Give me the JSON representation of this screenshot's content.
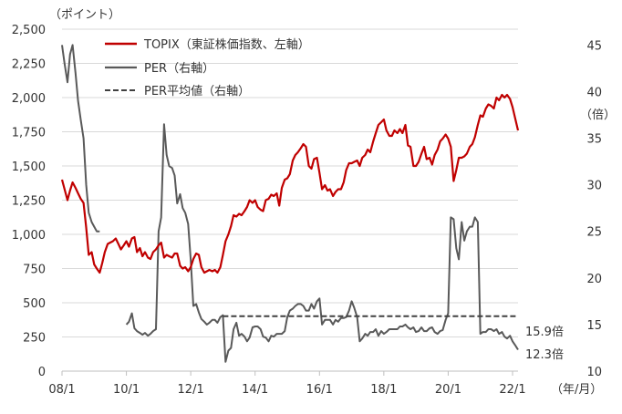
{
  "chart_data": {
    "type": "line",
    "left_unit": "（ポイント）",
    "right_unit": "（倍）",
    "x_unit": "（年/月）",
    "x_ticks": [
      "08/1",
      "10/1",
      "12/1",
      "14/1",
      "16/1",
      "18/1",
      "20/1",
      "22/1"
    ],
    "x_tick_years": [
      2008,
      2010,
      2012,
      2014,
      2016,
      2018,
      2020,
      2022
    ],
    "x_range": [
      2008.0,
      2022.17
    ],
    "left_axis": {
      "ticks": [
        "0",
        "250",
        "500",
        "750",
        "1,000",
        "1,250",
        "1,500",
        "1,750",
        "2,000",
        "2,250",
        "2,500"
      ],
      "values": [
        0,
        250,
        500,
        750,
        1000,
        1250,
        1500,
        1750,
        2000,
        2250,
        2500
      ],
      "range": [
        0,
        2500
      ]
    },
    "right_axis": {
      "ticks": [
        "10",
        "15",
        "20",
        "25",
        "30",
        "35",
        "40",
        "45"
      ],
      "values": [
        10,
        15,
        20,
        25,
        30,
        35,
        40,
        45
      ],
      "range": [
        10,
        46.7
      ]
    },
    "grid": true,
    "legend": {
      "placement": "top-left"
    },
    "series": [
      {
        "name": "TOPIX（東証株価指数、左軸）",
        "axis": "left",
        "color": "#c00000",
        "style": "solid",
        "x": [
          2008.0,
          2008.08,
          2008.17,
          2008.25,
          2008.33,
          2008.42,
          2008.5,
          2008.58,
          2008.67,
          2008.75,
          2008.83,
          2008.92,
          2009.0,
          2009.08,
          2009.17,
          2009.25,
          2009.33,
          2009.42,
          2009.5,
          2009.58,
          2009.67,
          2009.75,
          2009.83,
          2009.92,
          2010.0,
          2010.08,
          2010.17,
          2010.25,
          2010.33,
          2010.42,
          2010.5,
          2010.58,
          2010.67,
          2010.75,
          2010.83,
          2010.92,
          2011.0,
          2011.08,
          2011.17,
          2011.25,
          2011.33,
          2011.42,
          2011.5,
          2011.58,
          2011.67,
          2011.75,
          2011.83,
          2011.92,
          2012.0,
          2012.08,
          2012.17,
          2012.25,
          2012.33,
          2012.42,
          2012.5,
          2012.58,
          2012.67,
          2012.75,
          2012.83,
          2012.92,
          2013.0,
          2013.08,
          2013.17,
          2013.25,
          2013.33,
          2013.42,
          2013.5,
          2013.58,
          2013.67,
          2013.75,
          2013.83,
          2013.92,
          2014.0,
          2014.08,
          2014.17,
          2014.25,
          2014.33,
          2014.42,
          2014.5,
          2014.58,
          2014.67,
          2014.75,
          2014.83,
          2014.92,
          2015.0,
          2015.08,
          2015.17,
          2015.25,
          2015.33,
          2015.42,
          2015.5,
          2015.58,
          2015.67,
          2015.75,
          2015.83,
          2015.92,
          2016.0,
          2016.08,
          2016.17,
          2016.25,
          2016.33,
          2016.42,
          2016.5,
          2016.58,
          2016.67,
          2016.75,
          2016.83,
          2016.92,
          2017.0,
          2017.08,
          2017.17,
          2017.25,
          2017.33,
          2017.42,
          2017.5,
          2017.58,
          2017.67,
          2017.75,
          2017.83,
          2017.92,
          2018.0,
          2018.08,
          2018.17,
          2018.25,
          2018.33,
          2018.42,
          2018.5,
          2018.58,
          2018.67,
          2018.75,
          2018.83,
          2018.92,
          2019.0,
          2019.08,
          2019.17,
          2019.25,
          2019.33,
          2019.42,
          2019.5,
          2019.58,
          2019.67,
          2019.75,
          2019.83,
          2019.92,
          2020.0,
          2020.08,
          2020.17,
          2020.25,
          2020.33,
          2020.42,
          2020.5,
          2020.58,
          2020.67,
          2020.75,
          2020.83,
          2020.92,
          2021.0,
          2021.08,
          2021.17,
          2021.25,
          2021.33,
          2021.42,
          2021.5,
          2021.58,
          2021.67,
          2021.75,
          2021.83,
          2021.92,
          2022.0,
          2022.08,
          2022.17
        ],
        "values": [
          1400,
          1330,
          1250,
          1320,
          1380,
          1340,
          1300,
          1260,
          1230,
          1050,
          850,
          870,
          780,
          750,
          720,
          790,
          870,
          930,
          940,
          950,
          970,
          930,
          890,
          920,
          950,
          910,
          970,
          980,
          870,
          900,
          840,
          870,
          830,
          820,
          870,
          890,
          920,
          940,
          830,
          850,
          840,
          830,
          860,
          860,
          770,
          750,
          760,
          730,
          760,
          820,
          860,
          850,
          760,
          720,
          730,
          740,
          730,
          740,
          720,
          760,
          850,
          950,
          1000,
          1060,
          1140,
          1130,
          1150,
          1140,
          1170,
          1200,
          1250,
          1230,
          1250,
          1200,
          1180,
          1170,
          1250,
          1260,
          1290,
          1280,
          1300,
          1210,
          1340,
          1400,
          1410,
          1440,
          1540,
          1580,
          1600,
          1630,
          1660,
          1640,
          1500,
          1480,
          1550,
          1560,
          1450,
          1330,
          1360,
          1320,
          1330,
          1280,
          1310,
          1330,
          1330,
          1380,
          1470,
          1520,
          1520,
          1530,
          1540,
          1500,
          1560,
          1580,
          1620,
          1600,
          1680,
          1740,
          1800,
          1820,
          1840,
          1760,
          1720,
          1720,
          1760,
          1740,
          1770,
          1740,
          1800,
          1650,
          1640,
          1500,
          1500,
          1530,
          1590,
          1640,
          1550,
          1560,
          1510,
          1580,
          1620,
          1680,
          1700,
          1730,
          1700,
          1640,
          1390,
          1470,
          1560,
          1560,
          1570,
          1590,
          1640,
          1660,
          1710,
          1800,
          1870,
          1860,
          1920,
          1950,
          1940,
          1920,
          2000,
          1980,
          2020,
          2000,
          2020,
          1990,
          1930,
          1850,
          1760
        ]
      },
      {
        "name": "PER（右軸）",
        "axis": "right",
        "color": "#595959",
        "style": "solid",
        "segments": [
          {
            "x": [
              2008.0,
              2008.08,
              2008.17,
              2008.25,
              2008.33,
              2008.42,
              2008.5,
              2008.58,
              2008.67,
              2008.75,
              2008.83,
              2008.92,
              2009.0,
              2009.08,
              2009.17
            ],
            "values": [
              45,
              43,
              41,
              44,
              45,
              42,
              39,
              37,
              35,
              30,
              27,
              26,
              25.5,
              25,
              25
            ]
          },
          {
            "x": [
              2010.0,
              2010.08,
              2010.17,
              2010.25,
              2010.33,
              2010.42,
              2010.5,
              2010.58,
              2010.67,
              2010.75,
              2010.83,
              2010.92,
              2011.0,
              2011.08,
              2011.17,
              2011.25,
              2011.33,
              2011.42,
              2011.5,
              2011.58,
              2011.67,
              2011.75,
              2011.83,
              2011.92,
              2012.0,
              2012.08,
              2012.17,
              2012.25,
              2012.33,
              2012.42,
              2012.5,
              2012.58,
              2012.67,
              2012.75,
              2012.83,
              2012.92,
              2013.0,
              2013.08,
              2013.17,
              2013.25,
              2013.33,
              2013.42,
              2013.5,
              2013.58,
              2013.67,
              2013.75,
              2013.83,
              2013.92,
              2014.0,
              2014.08,
              2014.17,
              2014.25,
              2014.33,
              2014.42,
              2014.5,
              2014.58,
              2014.67,
              2014.75,
              2014.83,
              2014.92,
              2015.0,
              2015.08,
              2015.17,
              2015.25,
              2015.33,
              2015.42,
              2015.5,
              2015.58,
              2015.67,
              2015.75,
              2015.83,
              2015.92,
              2016.0,
              2016.08,
              2016.17,
              2016.25,
              2016.33,
              2016.42,
              2016.5,
              2016.58,
              2016.67,
              2016.75,
              2016.83,
              2016.92,
              2017.0,
              2017.08,
              2017.17,
              2017.25,
              2017.33,
              2017.42,
              2017.5,
              2017.58,
              2017.67,
              2017.75,
              2017.83,
              2017.92,
              2018.0,
              2018.08,
              2018.17,
              2018.25,
              2018.33,
              2018.42,
              2018.5,
              2018.58,
              2018.67,
              2018.75,
              2018.83,
              2018.92,
              2019.0,
              2019.08,
              2019.17,
              2019.25,
              2019.33,
              2019.42,
              2019.5,
              2019.58,
              2019.67,
              2019.75,
              2019.83,
              2019.92,
              2020.0,
              2020.08,
              2020.17,
              2020.25,
              2020.33,
              2020.42,
              2020.5,
              2020.58,
              2020.67,
              2020.75,
              2020.83,
              2020.92,
              2021.0,
              2021.08,
              2021.17,
              2021.25,
              2021.33,
              2021.42,
              2021.5,
              2021.58,
              2021.67,
              2021.75,
              2021.83,
              2021.92,
              2022.0,
              2022.08,
              2022.17
            ],
            "values": [
              15,
              15.3,
              16.2,
              14.6,
              14.3,
              14.1,
              13.9,
              14.1,
              13.8,
              14,
              14.3,
              14.5,
              25,
              26.5,
              36.5,
              33.2,
              32,
              31.8,
              31,
              28,
              29,
              27.5,
              27,
              25.8,
              22,
              17,
              17.2,
              16.3,
              15.6,
              15.3,
              15,
              15.2,
              15.5,
              15.5,
              15.2,
              15.8,
              16,
              11,
              12.2,
              12.5,
              14.5,
              15.2,
              13.8,
              14,
              13.7,
              13.2,
              13.6,
              14.7,
              14.8,
              14.8,
              14.5,
              13.7,
              13.6,
              13.2,
              13.8,
              13.7,
              14,
              14,
              14,
              14.3,
              15.8,
              16.5,
              16.7,
              17,
              17.2,
              17.2,
              17,
              16.5,
              16.5,
              17.2,
              16.7,
              17.5,
              17.8,
              15,
              15.5,
              15.5,
              15.5,
              15,
              15.5,
              15.3,
              15.7,
              15.7,
              15.8,
              16.5,
              17.5,
              16.8,
              15.8,
              13.2,
              13.5,
              14,
              13.8,
              14.2,
              14.2,
              14.5,
              13.8,
              14.3,
              14,
              14.2,
              14.5,
              14.5,
              14.5,
              14.5,
              14.8,
              14.8,
              15,
              14.7,
              14.5,
              14.7,
              14.2,
              14.3,
              14.7,
              14.3,
              14.3,
              14.6,
              14.7,
              14.2,
              14,
              14.3,
              14.4,
              15.5,
              16.2,
              26.5,
              26.3,
              23.2,
              22,
              26,
              24,
              25,
              25.5,
              25.5,
              26.5,
              26,
              14,
              14.2,
              14.2,
              14.5,
              14.5,
              14.3,
              14.5,
              14,
              14.2,
              13.7,
              13.5,
              13.8,
              13.2,
              12.8,
              12.3
            ]
          }
        ]
      },
      {
        "name": "PER平均値（右軸）",
        "axis": "right",
        "color": "#404040",
        "style": "dashed",
        "x": [
          2013.0,
          2022.17
        ],
        "values": [
          15.9,
          15.9
        ],
        "end_label": "15.9倍"
      }
    ],
    "per_end_label": "12.3倍"
  }
}
